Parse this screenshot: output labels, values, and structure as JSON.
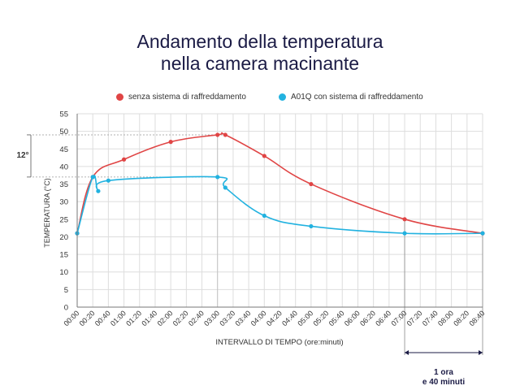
{
  "title_line1": "Andamento della temperatura",
  "title_line2": "nella camera macinante",
  "colors": {
    "red": "#e04545",
    "blue": "#22b2e0",
    "grid": "#dddddd",
    "annot": "#999999"
  },
  "chart_data": {
    "type": "line",
    "title": "Andamento della temperatura nella camera macinante",
    "xlabel": "INTERVALLO DI TEMPO (ore:minuti)",
    "ylabel": "TEMPERATURA (°C)",
    "ylim": [
      0,
      55
    ],
    "yticks": [
      0,
      5,
      10,
      15,
      20,
      25,
      30,
      35,
      40,
      45,
      50,
      55
    ],
    "grid": true,
    "legend_position": "top",
    "categories": [
      "00:00",
      "00:20",
      "00:40",
      "01:00",
      "01:20",
      "01:40",
      "02:00",
      "02:20",
      "02:40",
      "03:00",
      "03:20",
      "03:40",
      "04:00",
      "04:20",
      "04:40",
      "05:00",
      "05:20",
      "05:40",
      "06:00",
      "06:20",
      "06:40",
      "07:00",
      "07:20",
      "07:40",
      "08:00",
      "08:20",
      "08:40"
    ],
    "series": [
      {
        "name": "senza sistema di raffreddamento",
        "color": "#e04545",
        "points": [
          {
            "x": "00:00",
            "y": 21
          },
          {
            "x": "00:20",
            "y": 37
          },
          {
            "x": "01:00",
            "y": 42
          },
          {
            "x": "02:00",
            "y": 47
          },
          {
            "x": "03:00",
            "y": 49
          },
          {
            "x": "03:10",
            "y": 49
          },
          {
            "x": "04:00",
            "y": 43
          },
          {
            "x": "05:00",
            "y": 35
          },
          {
            "x": "07:00",
            "y": 25
          },
          {
            "x": "08:40",
            "y": 21
          }
        ]
      },
      {
        "name": "A01Q con sistema di raffreddamento",
        "color": "#22b2e0",
        "points": [
          {
            "x": "00:00",
            "y": 21
          },
          {
            "x": "00:20",
            "y": 37
          },
          {
            "x": "00:27",
            "y": 33
          },
          {
            "x": "00:40",
            "y": 36
          },
          {
            "x": "03:00",
            "y": 37
          },
          {
            "x": "03:10",
            "y": 34
          },
          {
            "x": "04:00",
            "y": 26
          },
          {
            "x": "05:00",
            "y": 23
          },
          {
            "x": "07:00",
            "y": 21
          },
          {
            "x": "08:40",
            "y": 21
          }
        ]
      }
    ],
    "annotations": {
      "temp_diff_label": "12°",
      "time_diff_line1": "1 ora",
      "time_diff_line2": "e 40 minuti"
    }
  }
}
